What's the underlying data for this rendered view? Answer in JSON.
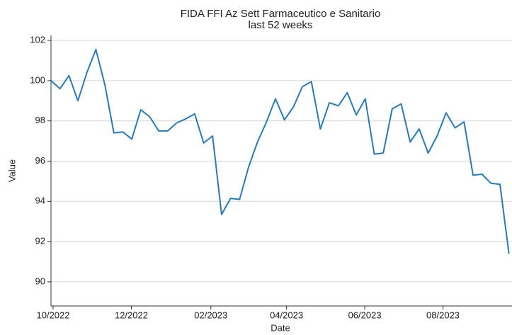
{
  "chart_data": {
    "type": "line",
    "title": "FIDA FFI Az Sett Farmaceutico e Sanitario",
    "subtitle": "last 52 weeks",
    "x_label": "Date",
    "y_label": "Value",
    "series": [
      {
        "name": "Value",
        "color": "#2a7ab5",
        "values": [
          100.0,
          99.6,
          100.25,
          99.0,
          100.4,
          101.55,
          99.8,
          97.4,
          97.45,
          97.1,
          98.55,
          98.2,
          97.5,
          97.5,
          97.9,
          98.1,
          98.35,
          96.9,
          97.25,
          93.35,
          94.15,
          94.1,
          95.7,
          96.95,
          97.95,
          99.1,
          98.05,
          98.7,
          99.7,
          99.95,
          97.6,
          98.9,
          98.75,
          99.4,
          98.3,
          99.1,
          96.35,
          96.4,
          98.6,
          98.85,
          96.95,
          97.6,
          96.4,
          97.25,
          98.4,
          97.65,
          97.95,
          95.3,
          95.35,
          94.9,
          94.85,
          91.4
        ]
      }
    ],
    "ylim": [
      88.8,
      102.25
    ],
    "yticks": [
      90,
      92,
      94,
      96,
      98,
      100,
      102
    ],
    "xticks": [
      {
        "value": "2022-10",
        "label": "10/2022"
      },
      {
        "value": "2022-12",
        "label": "12/2022"
      },
      {
        "value": "2023-02",
        "label": "02/2023"
      },
      {
        "value": "2023-04",
        "label": "04/2023"
      },
      {
        "value": "2023-06",
        "label": "06/2023"
      },
      {
        "value": "2023-08",
        "label": "08/2023"
      }
    ],
    "grid": true
  }
}
